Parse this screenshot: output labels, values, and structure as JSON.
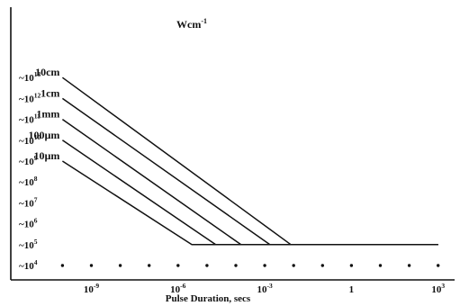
{
  "chart_data": {
    "type": "line",
    "title": "",
    "unit_label": "Wcm",
    "unit_exponent": "-1",
    "xlabel": "Pulse Duration,  secs",
    "ylabel": "",
    "x_scale": "log",
    "y_scale": "log",
    "xlim": [
      1e-11,
      10000.0
    ],
    "ylim": [
      1000.0,
      100000000000000.0
    ],
    "y_ticks": [
      {
        "base": "~10",
        "exp": "13",
        "value": 10000000000000.0
      },
      {
        "base": "~10",
        "exp": "12",
        "value": 1000000000000.0
      },
      {
        "base": "~10",
        "exp": "11",
        "value": 100000000000.0
      },
      {
        "base": "~10",
        "exp": "10",
        "value": 10000000000.0
      },
      {
        "base": "~10",
        "exp": "9",
        "value": 1000000000.0
      },
      {
        "base": "~10",
        "exp": "8",
        "value": 100000000.0
      },
      {
        "base": "~10",
        "exp": "7",
        "value": 10000000.0
      },
      {
        "base": "~10",
        "exp": "6",
        "value": 1000000.0
      },
      {
        "base": "~10",
        "exp": "5",
        "value": 100000.0
      },
      {
        "base": "~10",
        "exp": "4",
        "value": 10000.0
      }
    ],
    "x_ticks": [
      {
        "base": "10",
        "exp": "-9",
        "value": 1e-09
      },
      {
        "base": "10",
        "exp": "-6",
        "value": 1e-06
      },
      {
        "base": "10",
        "exp": "-3",
        "value": 0.001
      },
      {
        "base": "1",
        "exp": "",
        "value": 1
      },
      {
        "base": "10",
        "exp": "3",
        "value": 1000.0
      }
    ],
    "dots_y": 10000.0,
    "grid": false,
    "legend": "none",
    "series": [
      {
        "name": "10cm",
        "points": [
          [
            1e-10,
            10000000000000.0
          ],
          [
            0.008,
            100000.0
          ],
          [
            1000,
            100000.0
          ]
        ]
      },
      {
        "name": "1cm",
        "points": [
          [
            1e-10,
            1000000000000.0
          ],
          [
            0.0015,
            100000.0
          ],
          [
            1000,
            100000.0
          ]
        ]
      },
      {
        "name": "1mm",
        "points": [
          [
            1e-10,
            100000000000.0
          ],
          [
            0.00015,
            100000.0
          ],
          [
            1000,
            100000.0
          ]
        ]
      },
      {
        "name": "100µm",
        "points": [
          [
            1e-10,
            10000000000.0
          ],
          [
            2e-05,
            100000.0
          ],
          [
            1000,
            100000.0
          ]
        ]
      },
      {
        "name": "10µm",
        "points": [
          [
            1e-10,
            1000000000.0
          ],
          [
            3e-06,
            100000.0
          ],
          [
            1000,
            100000.0
          ]
        ]
      }
    ]
  }
}
